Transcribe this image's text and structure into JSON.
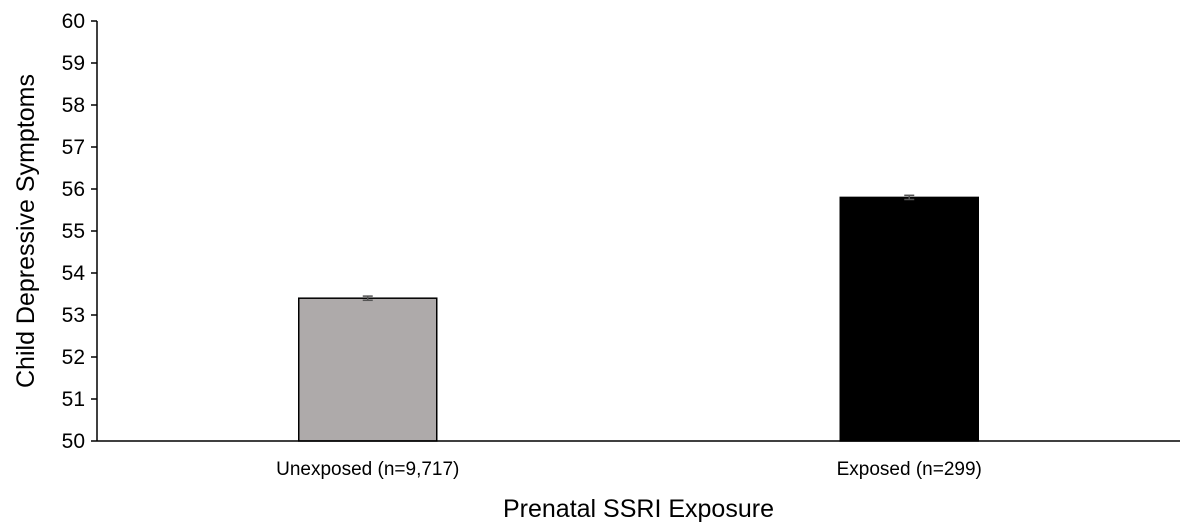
{
  "chart_data": {
    "type": "bar",
    "title": "",
    "xlabel": "Prenatal SSRI Exposure",
    "ylabel": "Child Depressive Symptoms",
    "ylim": [
      50,
      60
    ],
    "yticks": [
      50,
      51,
      52,
      53,
      54,
      55,
      56,
      57,
      58,
      59,
      60
    ],
    "categories": [
      "Unexposed (n=9,717)",
      "Exposed (n=299)"
    ],
    "values": [
      53.4,
      55.8
    ],
    "error": [
      0.05,
      0.05
    ],
    "colors": [
      "#aeaaaa",
      "#000000"
    ],
    "grid": false,
    "legend": "none"
  }
}
